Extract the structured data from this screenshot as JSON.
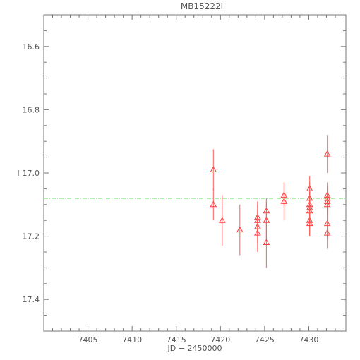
{
  "chart_data": {
    "type": "scatter",
    "title": "MB15222I",
    "xlabel": "JD − 2450000",
    "ylabel": "I",
    "xlim": [
      7400,
      7434.2
    ],
    "ylim": [
      17.5,
      16.5
    ],
    "y_inverted": true,
    "grid": false,
    "x_ticks": [
      7405,
      7410,
      7415,
      7420,
      7425,
      7430
    ],
    "y_ticks": [
      16.6,
      16.8,
      17.0,
      17.2,
      17.4
    ],
    "x_tick_labels": [
      "7405",
      "7410",
      "7415",
      "7420",
      "7425",
      "7430"
    ],
    "y_tick_labels": [
      "16.6",
      "16.8",
      "17.0",
      "17.2",
      "17.4"
    ],
    "reference_line": {
      "y": 17.08,
      "color": "#33cc33",
      "style": "dash-dot"
    },
    "series": [
      {
        "marker": "triangle",
        "color": "#ff3b3b",
        "points": [
          {
            "x": 7419.2,
            "y": 16.99,
            "err": 0.065
          },
          {
            "x": 7419.2,
            "y": 17.1,
            "err": 0.05
          },
          {
            "x": 7420.2,
            "y": 17.15,
            "err": 0.08
          },
          {
            "x": 7422.2,
            "y": 17.18,
            "err": 0.08
          },
          {
            "x": 7424.2,
            "y": 17.14,
            "err": 0.05
          },
          {
            "x": 7424.2,
            "y": 17.15,
            "err": 0.05
          },
          {
            "x": 7424.2,
            "y": 17.17,
            "err": 0.05
          },
          {
            "x": 7424.2,
            "y": 17.19,
            "err": 0.06
          },
          {
            "x": 7425.2,
            "y": 17.12,
            "err": 0.04
          },
          {
            "x": 7425.2,
            "y": 17.15,
            "err": 0.06
          },
          {
            "x": 7425.2,
            "y": 17.22,
            "err": 0.08
          },
          {
            "x": 7427.2,
            "y": 17.07,
            "err": 0.04
          },
          {
            "x": 7427.2,
            "y": 17.09,
            "err": 0.06
          },
          {
            "x": 7430.1,
            "y": 17.05,
            "err": 0.04
          },
          {
            "x": 7430.1,
            "y": 17.08,
            "err": 0.05
          },
          {
            "x": 7430.1,
            "y": 17.1,
            "err": 0.05
          },
          {
            "x": 7430.1,
            "y": 17.11,
            "err": 0.05
          },
          {
            "x": 7430.1,
            "y": 17.12,
            "err": 0.04
          },
          {
            "x": 7430.1,
            "y": 17.15,
            "err": 0.05
          },
          {
            "x": 7430.1,
            "y": 17.16,
            "err": 0.04
          },
          {
            "x": 7432.1,
            "y": 16.94,
            "err": 0.06
          },
          {
            "x": 7432.1,
            "y": 17.07,
            "err": 0.04
          },
          {
            "x": 7432.1,
            "y": 17.08,
            "err": 0.04
          },
          {
            "x": 7432.1,
            "y": 17.09,
            "err": 0.04
          },
          {
            "x": 7432.1,
            "y": 17.1,
            "err": 0.04
          },
          {
            "x": 7432.1,
            "y": 17.16,
            "err": 0.05
          },
          {
            "x": 7432.1,
            "y": 17.19,
            "err": 0.05
          }
        ]
      }
    ]
  }
}
